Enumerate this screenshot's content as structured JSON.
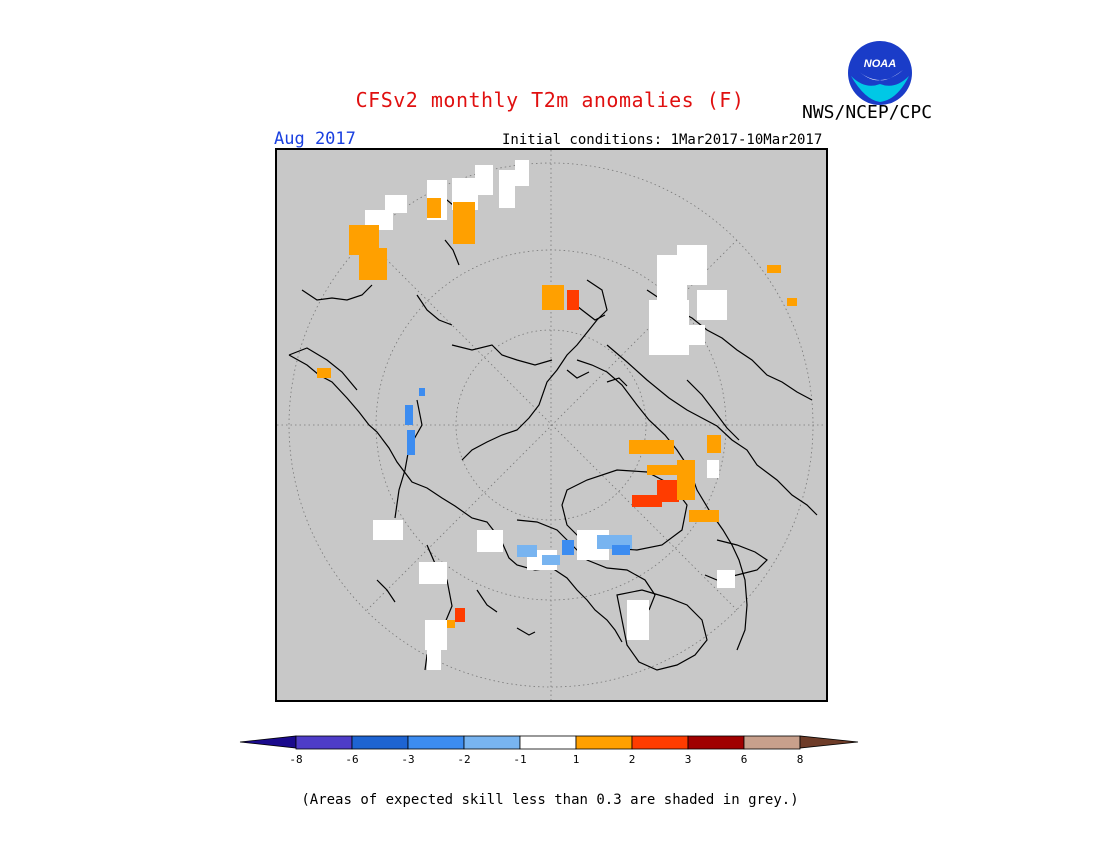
{
  "header": {
    "title": "CFSv2 monthly T2m anomalies (F)",
    "organization": "NWS/NCEP/CPC",
    "logo_text": "NOAA",
    "valid_month": "Aug 2017",
    "initial_conditions": "Initial conditions: 1Mar2017-10Mar2017"
  },
  "map": {
    "projection": "north-polar-stereographic",
    "background_color": "#c8c8c8",
    "low_skill_note": "(Areas of expected skill less than 0.3 are shaded in grey.)"
  },
  "legend": {
    "tick_labels": [
      "-8",
      "-6",
      "-3",
      "-2",
      "-1",
      "1",
      "2",
      "3",
      "6",
      "8"
    ],
    "bins": [
      {
        "range": "< -8",
        "color": "#1a0a8c"
      },
      {
        "range": "-8 to -6",
        "color": "#4e3cc8"
      },
      {
        "range": "-6 to -3",
        "color": "#1e64d2"
      },
      {
        "range": "-3 to -2",
        "color": "#3c8cf0"
      },
      {
        "range": "-2 to -1",
        "color": "#78b4f0"
      },
      {
        "range": "-1 to 1",
        "color": "#ffffff"
      },
      {
        "range": "1 to 2",
        "color": "#ffa000"
      },
      {
        "range": "2 to 3",
        "color": "#ff3c00"
      },
      {
        "range": "3 to 6",
        "color": "#a00000"
      },
      {
        "range": "6 to 8",
        "color": "#c8a08c"
      },
      {
        "range": "> 8",
        "color": "#6e3c28"
      }
    ]
  }
}
